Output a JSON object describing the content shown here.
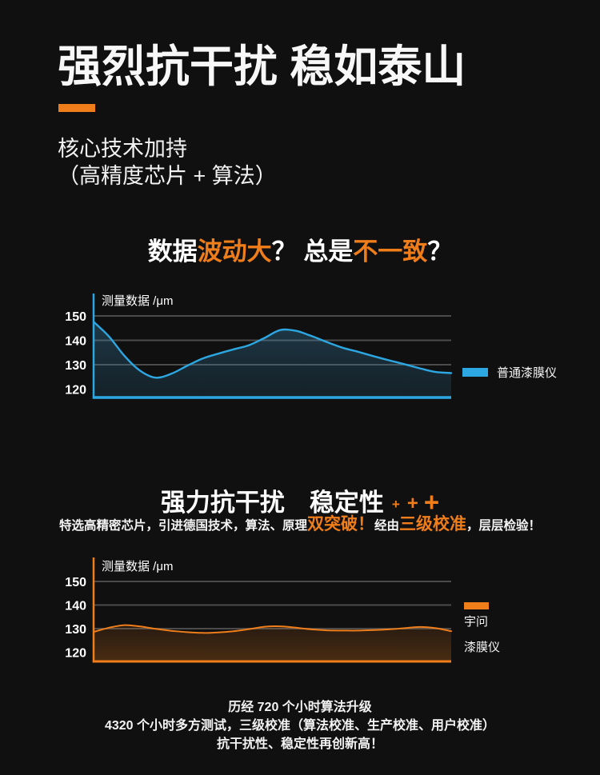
{
  "colors": {
    "background": "#101010",
    "accent_orange": "#ee7d1a",
    "accent_blue": "#2da7e2",
    "gridline": "#4b4b4b",
    "text": "#ffffff"
  },
  "header": {
    "title": "强烈抗干扰 稳如泰山",
    "subtitle_line1": "核心技术加持",
    "subtitle_line2": "（高精度芯片 + 算法）"
  },
  "problem": {
    "heading_parts": [
      {
        "text": "数据",
        "tone": "white"
      },
      {
        "text": "波动大",
        "tone": "orange"
      },
      {
        "text": "？ ",
        "tone": "white"
      },
      {
        "text": "总是",
        "tone": "white"
      },
      {
        "text": "不一致",
        "tone": "orange"
      },
      {
        "text": "？",
        "tone": "white"
      }
    ]
  },
  "solution": {
    "heading": "强力抗干扰　稳定性",
    "plus_signs": [
      "+",
      "+",
      "+"
    ],
    "sub_parts": [
      {
        "text": "特选高精密芯片，引进德国技术，算法、原理",
        "tone": "white"
      },
      {
        "text": "双突破！",
        "tone": "orange-big"
      },
      {
        "text": "经由",
        "tone": "white"
      },
      {
        "text": "三级校准",
        "tone": "orange-big"
      },
      {
        "text": "，层层检验！",
        "tone": "white"
      }
    ]
  },
  "footer": {
    "line1": "历经 720 个小时算法升级",
    "line2_prefix": "4320 个小时多方测试，",
    "line2_bold": "三级校准",
    "line2_suffix": "（算法校准、生产校准、用户校准）",
    "line3": "抗干扰性、稳定性再创新高！"
  },
  "chart_data": [
    {
      "type": "area",
      "axis_label": "测量数据 /μm",
      "ylabel": "测量数据 /μm",
      "y_ticks": [
        150,
        140,
        130,
        120
      ],
      "grid_values": [
        150,
        140,
        130
      ],
      "ylim": [
        117,
        157
      ],
      "grid": true,
      "legend_position": "right",
      "legend": {
        "label": "普通漆膜仪"
      },
      "series": [
        {
          "name": "普通漆膜仪",
          "color": "#2da7e2",
          "values": [
            147.6,
            141.5,
            133.5,
            127.5,
            124.7,
            126.3,
            129.5,
            132.5,
            134.5,
            136.3,
            138.0,
            141.0,
            144.2,
            143.9,
            141.8,
            139.3,
            137.0,
            135.3,
            133.5,
            131.8,
            130.2,
            128.5,
            127.0,
            126.6
          ]
        }
      ]
    },
    {
      "type": "area",
      "axis_label": "测量数据 /μm",
      "ylabel": "测量数据 /μm",
      "y_ticks": [
        150,
        140,
        130,
        120
      ],
      "grid_values": [
        150,
        140,
        130
      ],
      "ylim": [
        117,
        157
      ],
      "grid": true,
      "legend_position": "right",
      "legend": {
        "lines": [
          "宇问",
          "漆膜仪"
        ]
      },
      "series": [
        {
          "name": "宇问漆膜仪",
          "color": "#ee7d1a",
          "values": [
            128.6,
            130.4,
            131.5,
            130.9,
            129.9,
            129.1,
            128.5,
            128.2,
            128.4,
            128.9,
            129.8,
            130.8,
            131.0,
            130.4,
            129.7,
            129.3,
            129.2,
            129.2,
            129.4,
            129.7,
            130.2,
            130.7,
            130.2,
            128.9
          ]
        }
      ]
    }
  ]
}
